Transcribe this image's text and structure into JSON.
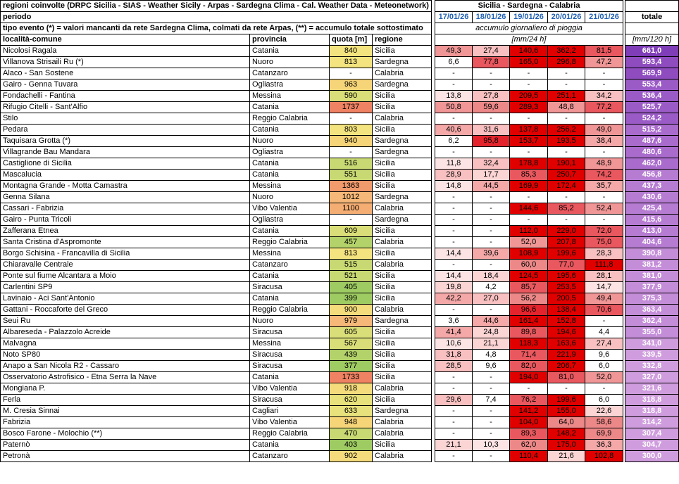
{
  "header": {
    "title": "regioni coinvolte (DRPC Sicilia - SIAS - Weather Sicily - Arpas - Sardegna Clima - Cal. Weather Data - Meteonetwork)",
    "regions": "Sicilia - Sardegna - Calabria",
    "periodo_label": "periodo",
    "dates": [
      "17/01/26",
      "18/01/26",
      "19/01/26",
      "20/01/26",
      "21/01/26"
    ],
    "totale_label": "totale",
    "tipo_evento": "tipo evento (*) = valori mancanti da rete Sardegna Clima, colmati da rete Arpas, (**) = accumulo totale sottostimato",
    "accumulo_label": "accumulo giornaliero di pioggia",
    "col_localita": "località-comune",
    "col_provincia": "provincia",
    "col_quota": "quota [m]",
    "col_regione": "regione",
    "unit_day": "[mm/24 h]",
    "unit_total": "[mm/120 h]"
  },
  "rows": [
    {
      "name": "Nicolosi Ragala",
      "prov": "Catania",
      "quota": "840",
      "reg": "Sicilia",
      "d": [
        "49,3",
        "27,4",
        "140,6",
        "362,2",
        "81,5"
      ],
      "tot": "661,0"
    },
    {
      "name": "Villanova Strisaili Ru (*)",
      "prov": "Nuoro",
      "quota": "813",
      "reg": "Sardegna",
      "d": [
        "6,6",
        "77,8",
        "165,0",
        "296,8",
        "47,2"
      ],
      "tot": "593,4"
    },
    {
      "name": "Alaco - San Sostene",
      "prov": "Catanzaro",
      "quota": "-",
      "reg": "Calabria",
      "d": [
        "-",
        "-",
        "-",
        "-",
        "-"
      ],
      "tot": "569,9"
    },
    {
      "name": "Gairo - Genna Tuvara",
      "prov": "Ogliastra",
      "quota": "963",
      "reg": "Sardegna",
      "d": [
        "-",
        "-",
        "-",
        "-",
        "-"
      ],
      "tot": "553,4"
    },
    {
      "name": "Fondachelli - Fantina",
      "prov": "Messina",
      "quota": "590",
      "reg": "Sicilia",
      "d": [
        "13,8",
        "27,8",
        "209,5",
        "251,1",
        "34,2"
      ],
      "tot": "536,4"
    },
    {
      "name": "Rifugio Citelli - Sant'Alfio",
      "prov": "Catania",
      "quota": "1737",
      "reg": "Sicilia",
      "d": [
        "50,8",
        "59,6",
        "289,3",
        "48,8",
        "77,2"
      ],
      "tot": "525,7"
    },
    {
      "name": "Stilo",
      "prov": "Reggio Calabria",
      "quota": "-",
      "reg": "Calabria",
      "d": [
        "-",
        "-",
        "-",
        "-",
        "-"
      ],
      "tot": "524,2"
    },
    {
      "name": "Pedara",
      "prov": "Catania",
      "quota": "803",
      "reg": "Sicilia",
      "d": [
        "40,6",
        "31,6",
        "137,8",
        "256,2",
        "49,0"
      ],
      "tot": "515,2"
    },
    {
      "name": "Taquisara Grotta (*)",
      "prov": "Nuoro",
      "quota": "940",
      "reg": "Sardegna",
      "d": [
        "6,2",
        "95,8",
        "153,7",
        "193,5",
        "38,4"
      ],
      "tot": "487,6"
    },
    {
      "name": "Villagrande Bau Mandara",
      "prov": "Ogliastra",
      "quota": "-",
      "reg": "Sardegna",
      "d": [
        "-",
        "-",
        "-",
        "-",
        "-"
      ],
      "tot": "480,6"
    },
    {
      "name": "Castiglione di Sicilia",
      "prov": "Catania",
      "quota": "516",
      "reg": "Sicilia",
      "d": [
        "11,8",
        "32,4",
        "178,8",
        "190,1",
        "48,9"
      ],
      "tot": "462,0"
    },
    {
      "name": "Mascalucia",
      "prov": "Catania",
      "quota": "551",
      "reg": "Sicilia",
      "d": [
        "28,9",
        "17,7",
        "85,3",
        "250,7",
        "74,2"
      ],
      "tot": "456,8"
    },
    {
      "name": "Montagna Grande - Motta Camastra",
      "prov": "Messina",
      "quota": "1363",
      "reg": "Sicilia",
      "d": [
        "14,8",
        "44,5",
        "169,9",
        "172,4",
        "35,7"
      ],
      "tot": "437,3"
    },
    {
      "name": "Genna Silana",
      "prov": "Nuoro",
      "quota": "1012",
      "reg": "Sardegna",
      "d": [
        "-",
        "-",
        "-",
        "-",
        "-"
      ],
      "tot": "430,6"
    },
    {
      "name": "Cassari - Fabrizia",
      "prov": "Vibo Valentia",
      "quota": "1100",
      "reg": "Calabria",
      "d": [
        "-",
        "-",
        "144,6",
        "85,2",
        "52,4"
      ],
      "tot": "425,4"
    },
    {
      "name": "Gairo - Punta Tricoli",
      "prov": "Ogliastra",
      "quota": "-",
      "reg": "Sardegna",
      "d": [
        "-",
        "-",
        "-",
        "-",
        "-"
      ],
      "tot": "415,6"
    },
    {
      "name": "Zafferana Etnea",
      "prov": "Catania",
      "quota": "609",
      "reg": "Sicilia",
      "d": [
        "-",
        "-",
        "112,0",
        "229,0",
        "72,0"
      ],
      "tot": "413,0"
    },
    {
      "name": "Santa Cristina d'Aspromonte",
      "prov": "Reggio Calabria",
      "quota": "457",
      "reg": "Calabria",
      "d": [
        "-",
        "-",
        "52,0",
        "207,8",
        "75,0"
      ],
      "tot": "404,6"
    },
    {
      "name": "Borgo Schisina - Francavilla di Sicilia",
      "prov": "Messina",
      "quota": "813",
      "reg": "Sicilia",
      "d": [
        "14,4",
        "39,6",
        "108,9",
        "199,6",
        "28,3"
      ],
      "tot": "390,8"
    },
    {
      "name": "Chiaravalle Centrale",
      "prov": "Catanzaro",
      "quota": "515",
      "reg": "Calabria",
      "d": [
        "-",
        "-",
        "60,0",
        "77,0",
        "111,8"
      ],
      "tot": "381,2"
    },
    {
      "name": "Ponte sul fiume Alcantara a Moio",
      "prov": "Catania",
      "quota": "521",
      "reg": "Sicilia",
      "d": [
        "14,4",
        "18,4",
        "124,5",
        "195,6",
        "28,1"
      ],
      "tot": "381,0"
    },
    {
      "name": "Carlentini SP9",
      "prov": "Siracusa",
      "quota": "405",
      "reg": "Sicilia",
      "d": [
        "19,8",
        "4,2",
        "85,7",
        "253,5",
        "14,7"
      ],
      "tot": "377,9"
    },
    {
      "name": "Lavinaio - Aci Sant'Antonio",
      "prov": "Catania",
      "quota": "399",
      "reg": "Sicilia",
      "d": [
        "42,2",
        "27,0",
        "56,2",
        "200,5",
        "49,4"
      ],
      "tot": "375,3"
    },
    {
      "name": "Gattani - Roccaforte del Greco",
      "prov": "Reggio Calabria",
      "quota": "900",
      "reg": "Calabria",
      "d": [
        "-",
        "-",
        "96,6",
        "138,4",
        "70,6"
      ],
      "tot": "363,4"
    },
    {
      "name": "Seui Ru",
      "prov": "Nuoro",
      "quota": "979",
      "reg": "Sardegna",
      "d": [
        "3,6",
        "44,6",
        "161,4",
        "152,8",
        "-"
      ],
      "tot": "362,4"
    },
    {
      "name": "Albareseda - Palazzolo Acreide",
      "prov": "Siracusa",
      "quota": "605",
      "reg": "Sicilia",
      "d": [
        "41,4",
        "24,8",
        "89,8",
        "194,6",
        "4,4"
      ],
      "tot": "355,0"
    },
    {
      "name": "Malvagna",
      "prov": "Messina",
      "quota": "567",
      "reg": "Sicilia",
      "d": [
        "10,6",
        "21,1",
        "118,3",
        "163,6",
        "27,4"
      ],
      "tot": "341,0"
    },
    {
      "name": "Noto SP80",
      "prov": "Siracusa",
      "quota": "439",
      "reg": "Sicilia",
      "d": [
        "31,8",
        "4,8",
        "71,4",
        "221,9",
        "9,6"
      ],
      "tot": "339,5"
    },
    {
      "name": "Anapo a San Nicola R2 - Cassaro",
      "prov": "Siracusa",
      "quota": "377",
      "reg": "Sicilia",
      "d": [
        "28,5",
        "9,6",
        "82,0",
        "206,7",
        "6,0"
      ],
      "tot": "332,8"
    },
    {
      "name": "Osservatorio Astrofisico - Etna Serra la Nave",
      "prov": "Catania",
      "quota": "1733",
      "reg": "Sicilia",
      "d": [
        "-",
        "-",
        "194,0",
        "81,0",
        "52,0"
      ],
      "tot": "327,0"
    },
    {
      "name": "Mongiana P.",
      "prov": "Vibo Valentia",
      "quota": "918",
      "reg": "Calabria",
      "d": [
        "-",
        "-",
        "-",
        "-",
        "-"
      ],
      "tot": "321,6"
    },
    {
      "name": "Ferla",
      "prov": "Siracusa",
      "quota": "620",
      "reg": "Sicilia",
      "d": [
        "29,6",
        "7,4",
        "76,2",
        "199,6",
        "6,0"
      ],
      "tot": "318,8"
    },
    {
      "name": "M. Cresia Sinnai",
      "prov": "Cagliari",
      "quota": "633",
      "reg": "Sardegna",
      "d": [
        "-",
        "-",
        "141,2",
        "155,0",
        "22,6"
      ],
      "tot": "318,8"
    },
    {
      "name": "Fabrizia",
      "prov": "Vibo Valentia",
      "quota": "948",
      "reg": "Calabria",
      "d": [
        "-",
        "-",
        "104,0",
        "64,0",
        "58,6"
      ],
      "tot": "314,2"
    },
    {
      "name": "Bosco Farone - Molochio (**)",
      "prov": "Reggio Calabria",
      "quota": "470",
      "reg": "Calabria",
      "d": [
        "-",
        "-",
        "89,3",
        "148,2",
        "69,9"
      ],
      "tot": "307,4"
    },
    {
      "name": "Paternò",
      "prov": "Catania",
      "quota": "403",
      "reg": "Sicilia",
      "d": [
        "21,1",
        "10,3",
        "62,0",
        "175,0",
        "36,3"
      ],
      "tot": "304,7"
    },
    {
      "name": "Petronà",
      "prov": "Catanzaro",
      "quota": "902",
      "reg": "Calabria",
      "d": [
        "-",
        "-",
        "110,4",
        "21,6",
        "102,8"
      ],
      "tot": "300,0"
    }
  ]
}
